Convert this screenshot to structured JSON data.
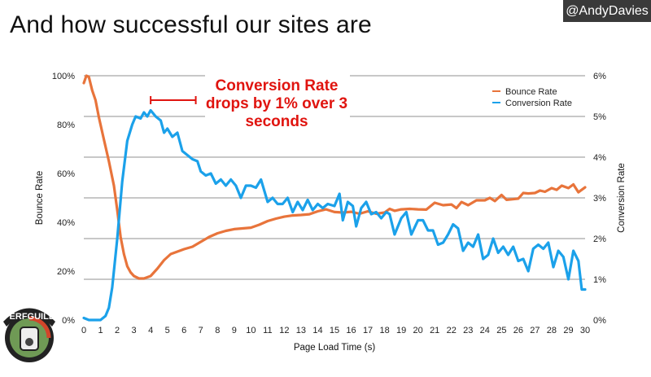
{
  "slide": {
    "title": "And how successful our sites are",
    "handle": "@AndyDavies",
    "logo_text": "PERFGUILD"
  },
  "chart_data": {
    "type": "line",
    "xlabel": "Page Load Time (s)",
    "ylabel_left": "Bounce Rate",
    "ylabel_right": "Conversion Rate",
    "xlim": [
      0,
      30
    ],
    "xticks": [
      "0",
      "1",
      "2",
      "3",
      "4",
      "5",
      "6",
      "7",
      "8",
      "9",
      "10",
      "11",
      "12",
      "13",
      "14",
      "15",
      "16",
      "17",
      "18",
      "19",
      "20",
      "21",
      "22",
      "23",
      "24",
      "25",
      "26",
      "27",
      "28",
      "29",
      "30"
    ],
    "ylim_left": [
      0,
      100
    ],
    "yticks_left": [
      "0%",
      "20%",
      "40%",
      "60%",
      "80%",
      "100%"
    ],
    "ylim_right": [
      0,
      6
    ],
    "yticks_right": [
      "0%",
      "1%",
      "2%",
      "3%",
      "4%",
      "5%",
      "6%"
    ],
    "grid": true,
    "legend_position": "top-right",
    "series": [
      {
        "name": "Bounce Rate",
        "axis": "left",
        "color": "#e8743b",
        "x": [
          0,
          0.15,
          0.3,
          0.5,
          0.7,
          0.9,
          1.2,
          1.5,
          1.8,
          2.0,
          2.2,
          2.4,
          2.6,
          2.8,
          3.0,
          3.3,
          3.6,
          4.0,
          4.4,
          4.8,
          5.2,
          5.6,
          6.0,
          6.5,
          7.0,
          7.5,
          8.0,
          8.5,
          9.0,
          9.5,
          10.0,
          10.5,
          11.0,
          11.5,
          12.0,
          12.5,
          13.0,
          13.5,
          14.0,
          14.5,
          15.0,
          15.5,
          16.0,
          16.5,
          17.0,
          17.5,
          18.0,
          18.3,
          18.6,
          19.0,
          19.5,
          20.0,
          20.5,
          21.0,
          21.5,
          22.0,
          22.3,
          22.6,
          23.0,
          23.5,
          24.0,
          24.3,
          24.6,
          25.0,
          25.3,
          25.6,
          26.0,
          26.3,
          26.6,
          27.0,
          27.3,
          27.6,
          28.0,
          28.3,
          28.6,
          29.0,
          29.3,
          29.6,
          30.0
        ],
        "values": [
          97,
          100,
          99.5,
          94,
          90,
          83,
          74,
          65,
          55,
          45,
          34,
          27,
          22,
          19.5,
          18,
          17,
          17,
          18,
          21,
          24.5,
          27,
          28,
          29,
          30,
          32,
          34,
          35.5,
          36.5,
          37.2,
          37.5,
          37.8,
          39,
          40.5,
          41.5,
          42.3,
          42.8,
          43,
          43.3,
          44.5,
          45.3,
          44.2,
          44,
          44.3,
          43.5,
          44.5,
          43.5,
          44,
          45.5,
          44.7,
          45.3,
          45.5,
          45.3,
          45.2,
          48,
          47,
          47.3,
          45.8,
          48.3,
          47,
          49,
          49,
          50,
          48.7,
          51.2,
          49.2,
          49.4,
          49.7,
          52,
          51.8,
          52,
          53,
          52.5,
          54,
          53.3,
          55,
          54,
          55.5,
          52.3,
          54.3
        ]
      },
      {
        "name": "Conversion Rate",
        "axis": "right",
        "color": "#1ba1ea",
        "x": [
          0,
          0.3,
          0.6,
          1.0,
          1.3,
          1.5,
          1.7,
          2.0,
          2.3,
          2.6,
          2.9,
          3.1,
          3.4,
          3.6,
          3.8,
          4.0,
          4.3,
          4.6,
          4.8,
          5.0,
          5.3,
          5.6,
          5.9,
          6.2,
          6.5,
          6.8,
          7.0,
          7.3,
          7.6,
          7.9,
          8.2,
          8.5,
          8.8,
          9.1,
          9.4,
          9.7,
          10.0,
          10.3,
          10.6,
          11.0,
          11.3,
          11.6,
          11.9,
          12.2,
          12.5,
          12.8,
          13.1,
          13.4,
          13.7,
          14.0,
          14.3,
          14.6,
          15.0,
          15.3,
          15.5,
          15.8,
          16.1,
          16.3,
          16.6,
          16.9,
          17.2,
          17.5,
          17.8,
          18.1,
          18.3,
          18.6,
          19.0,
          19.3,
          19.6,
          20.0,
          20.3,
          20.6,
          20.9,
          21.2,
          21.5,
          21.8,
          22.1,
          22.4,
          22.7,
          23.0,
          23.3,
          23.6,
          23.9,
          24.2,
          24.5,
          24.8,
          25.1,
          25.4,
          25.7,
          26.0,
          26.3,
          26.6,
          26.9,
          27.2,
          27.5,
          27.8,
          28.1,
          28.4,
          28.7,
          29.0,
          29.3,
          29.6,
          29.8,
          30.0
        ],
        "values": [
          0.05,
          0,
          0,
          0,
          0.1,
          0.3,
          0.8,
          2.0,
          3.4,
          4.4,
          4.8,
          5.0,
          4.95,
          5.1,
          5.0,
          5.15,
          5.0,
          4.9,
          4.6,
          4.7,
          4.5,
          4.6,
          4.15,
          4.05,
          3.95,
          3.9,
          3.65,
          3.55,
          3.6,
          3.35,
          3.45,
          3.3,
          3.45,
          3.3,
          3.0,
          3.3,
          3.3,
          3.25,
          3.45,
          2.9,
          3.0,
          2.85,
          2.85,
          3.0,
          2.65,
          2.9,
          2.7,
          2.95,
          2.7,
          2.85,
          2.75,
          2.85,
          2.8,
          3.1,
          2.45,
          2.9,
          2.8,
          2.3,
          2.75,
          2.9,
          2.6,
          2.65,
          2.5,
          2.65,
          2.6,
          2.1,
          2.5,
          2.65,
          2.1,
          2.45,
          2.45,
          2.2,
          2.2,
          1.85,
          1.9,
          2.1,
          2.35,
          2.25,
          1.7,
          1.9,
          1.8,
          2.1,
          1.5,
          1.6,
          2.0,
          1.65,
          1.8,
          1.6,
          1.8,
          1.45,
          1.5,
          1.2,
          1.75,
          1.85,
          1.75,
          1.9,
          1.3,
          1.7,
          1.55,
          1.0,
          1.7,
          1.45,
          0.75,
          0.75
        ]
      }
    ],
    "annotation": {
      "lines": [
        "Conversion Rate",
        "drops by 1% over 3",
        "seconds"
      ],
      "color": "#e0140f",
      "bracket_x": [
        4,
        6.7
      ]
    }
  }
}
